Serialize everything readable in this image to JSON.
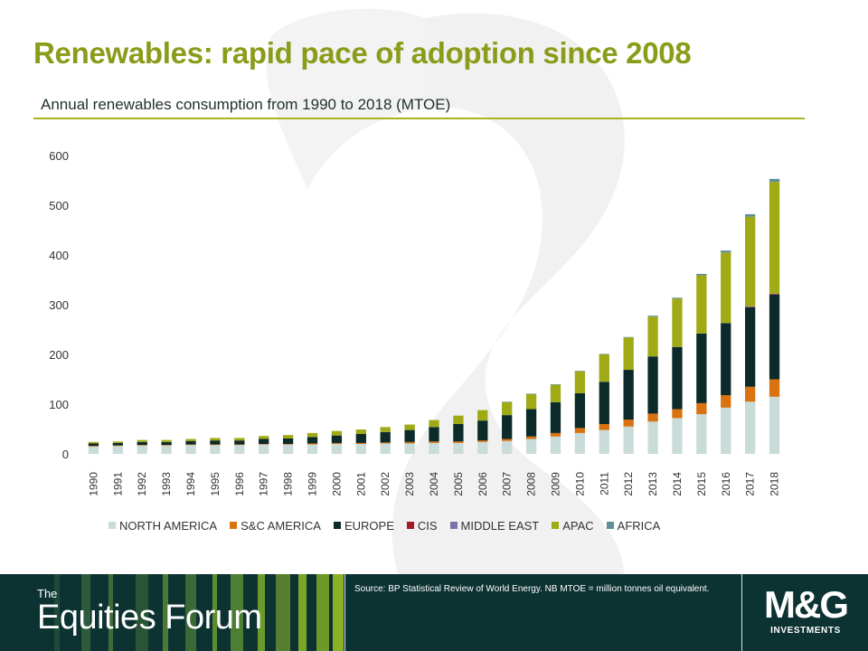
{
  "title": "Renewables: rapid pace of adoption since 2008",
  "subtitle": "Annual renewables consumption from 1990 to 2018 (MTOE)",
  "footer": {
    "brand_the": "The",
    "brand_name": "Equities Forum",
    "source": "Source: BP Statistical Review of World Energy. NB MTOE  = million  tonnes oil equivalent.",
    "logo_mark": "M&G",
    "logo_sub": "INVESTMENTS"
  },
  "colors": {
    "title": "#8a9c1a",
    "footer_bg": "#0d3232",
    "rule": "#a8b51e"
  },
  "chart_data": {
    "type": "bar",
    "stacked": true,
    "categories": [
      "1990",
      "1991",
      "1992",
      "1993",
      "1994",
      "1995",
      "1996",
      "1997",
      "1998",
      "1999",
      "2000",
      "2001",
      "2002",
      "2003",
      "2004",
      "2005",
      "2006",
      "2007",
      "2008",
      "2009",
      "2010",
      "2011",
      "2012",
      "2013",
      "2014",
      "2015",
      "2016",
      "2017",
      "2018"
    ],
    "ylim": [
      0,
      600
    ],
    "yticks": [
      0,
      100,
      200,
      300,
      400,
      500,
      600
    ],
    "grid": false,
    "legend_position": "bottom",
    "series": [
      {
        "name": "NORTH AMERICA",
        "color": "#c9dcd9",
        "values": [
          15,
          16,
          17,
          17,
          18,
          18,
          18,
          19,
          19,
          19,
          20,
          20,
          21,
          21,
          22,
          22,
          24,
          26,
          30,
          35,
          42,
          48,
          55,
          65,
          72,
          80,
          93,
          105,
          115
        ]
      },
      {
        "name": "S&C AMERICA",
        "color": "#d9720f",
        "values": [
          1,
          1,
          1,
          1,
          1,
          1,
          1,
          1,
          1,
          2,
          2,
          2,
          2,
          3,
          3,
          3,
          3,
          4,
          5,
          7,
          10,
          12,
          14,
          16,
          18,
          22,
          25,
          30,
          35
        ]
      },
      {
        "name": "EUROPE",
        "color": "#0c2a2a",
        "values": [
          5,
          5,
          6,
          6,
          7,
          8,
          8,
          10,
          11,
          13,
          15,
          18,
          21,
          24,
          29,
          35,
          40,
          48,
          55,
          62,
          70,
          85,
          100,
          115,
          125,
          140,
          145,
          160,
          170
        ]
      },
      {
        "name": "CIS",
        "color": "#a31924",
        "values": [
          0,
          0,
          0,
          0,
          0,
          0,
          0,
          0,
          0,
          0,
          0,
          0,
          0,
          0,
          0,
          0,
          0,
          0,
          0,
          0,
          0,
          0,
          0,
          0,
          0,
          0,
          0,
          1,
          1
        ]
      },
      {
        "name": "MIDDLE EAST",
        "color": "#7a72a8",
        "values": [
          0,
          0,
          0,
          0,
          0,
          0,
          0,
          0,
          0,
          0,
          0,
          0,
          0,
          0,
          0,
          0,
          0,
          0,
          0,
          0,
          0,
          0,
          0,
          0,
          0,
          0,
          0,
          1,
          1
        ]
      },
      {
        "name": "APAC",
        "color": "#9faa14",
        "values": [
          3,
          3,
          4,
          4,
          4,
          5,
          5,
          6,
          7,
          8,
          9,
          9,
          10,
          11,
          14,
          17,
          21,
          26,
          30,
          35,
          44,
          55,
          65,
          80,
          97,
          117,
          142,
          180,
          225
        ]
      },
      {
        "name": "AFRICA",
        "color": "#5f8f95",
        "values": [
          0,
          0,
          0,
          0,
          0,
          0,
          0,
          0,
          0,
          0,
          0,
          0,
          0,
          0,
          0,
          0,
          0,
          1,
          1,
          1,
          1,
          1,
          1,
          2,
          2,
          3,
          4,
          5,
          6
        ]
      }
    ]
  }
}
